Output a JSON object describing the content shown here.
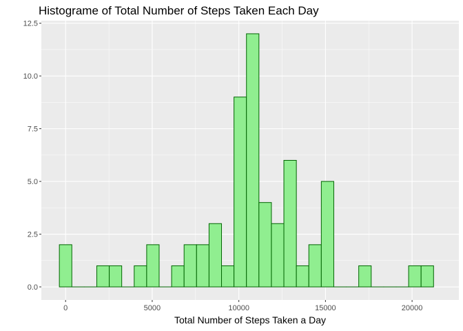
{
  "chart_data": {
    "type": "bar",
    "title": "Histograme of Total Number of Steps Taken Each Day",
    "xlabel": "Total Number of Steps Taken a Day",
    "ylabel": "",
    "bin_width": 720,
    "bins": [
      {
        "center": 0,
        "count": 2
      },
      {
        "center": 720,
        "count": 0
      },
      {
        "center": 1440,
        "count": 0
      },
      {
        "center": 2160,
        "count": 1
      },
      {
        "center": 2880,
        "count": 1
      },
      {
        "center": 3600,
        "count": 0
      },
      {
        "center": 4320,
        "count": 1
      },
      {
        "center": 5040,
        "count": 2
      },
      {
        "center": 5760,
        "count": 0
      },
      {
        "center": 6480,
        "count": 1
      },
      {
        "center": 7200,
        "count": 2
      },
      {
        "center": 7920,
        "count": 2
      },
      {
        "center": 8640,
        "count": 3
      },
      {
        "center": 9360,
        "count": 1
      },
      {
        "center": 10080,
        "count": 9
      },
      {
        "center": 10800,
        "count": 12
      },
      {
        "center": 11520,
        "count": 4
      },
      {
        "center": 12240,
        "count": 3
      },
      {
        "center": 12960,
        "count": 6
      },
      {
        "center": 13680,
        "count": 1
      },
      {
        "center": 14400,
        "count": 2
      },
      {
        "center": 15120,
        "count": 5
      },
      {
        "center": 15840,
        "count": 0
      },
      {
        "center": 16560,
        "count": 0
      },
      {
        "center": 17280,
        "count": 1
      },
      {
        "center": 18000,
        "count": 0
      },
      {
        "center": 18720,
        "count": 0
      },
      {
        "center": 19440,
        "count": 0
      },
      {
        "center": 20160,
        "count": 1
      },
      {
        "center": 20880,
        "count": 1
      }
    ],
    "xlim": [
      -1400,
      22700
    ],
    "ylim": [
      -0.62,
      12.62
    ],
    "x_ticks": [
      0,
      5000,
      10000,
      15000,
      20000
    ],
    "x_tick_labels": [
      "0",
      "5000",
      "10000",
      "15000",
      "20000"
    ],
    "y_ticks": [
      0,
      2.5,
      5,
      7.5,
      10,
      12.5
    ],
    "y_tick_labels": [
      "0.0",
      "2.5",
      "5.0",
      "7.5",
      "10.0",
      "12.5"
    ],
    "colors": {
      "panel": "#ebebeb",
      "grid": "#ffffff",
      "bar_fill": "#90ee90",
      "bar_outline": "#006400"
    },
    "grid": true,
    "legend": "none"
  }
}
